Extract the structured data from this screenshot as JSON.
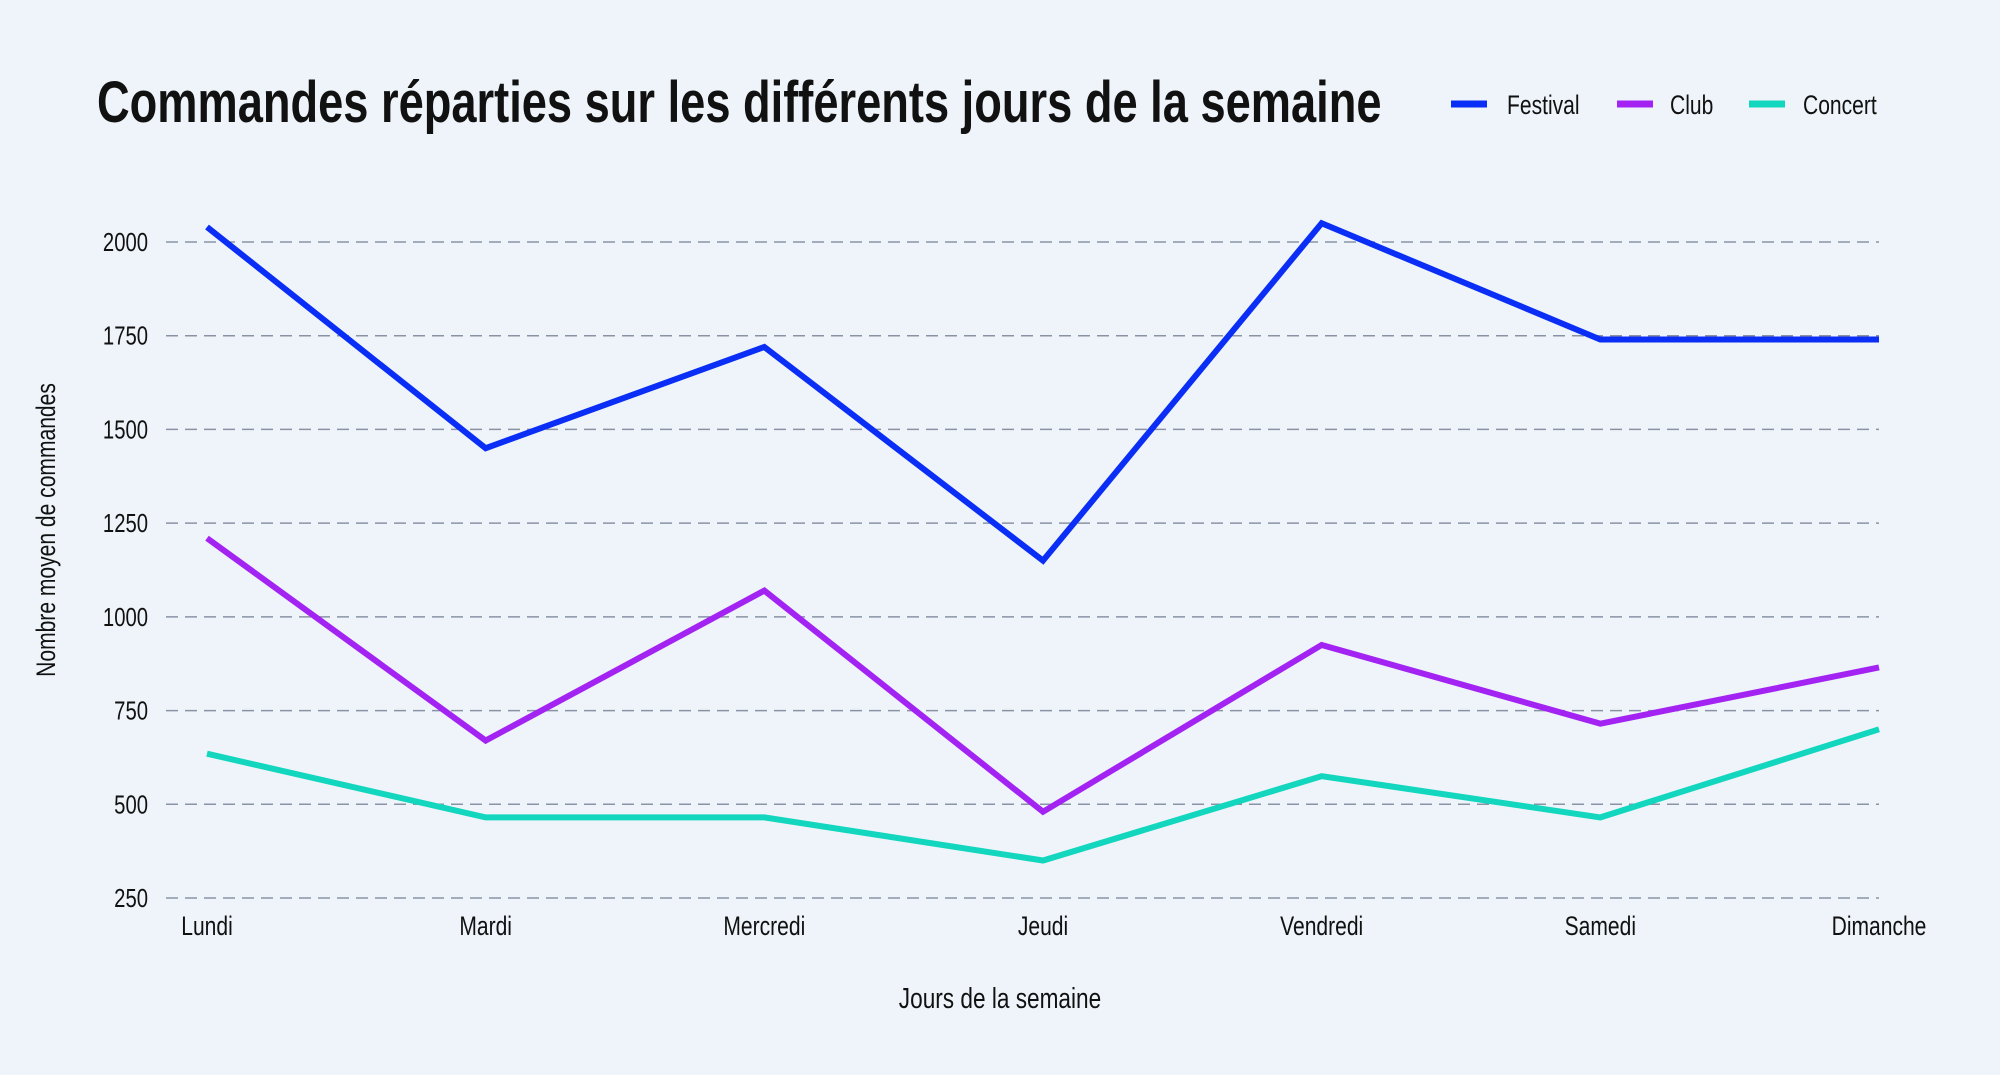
{
  "chart_data": {
    "type": "line",
    "title": "Commandes réparties sur les différents jours de la semaine",
    "xlabel": "Jours de la semaine",
    "ylabel": "Nombre moyen de commandes",
    "categories": [
      "Lundi",
      "Mardi",
      "Mercredi",
      "Jeudi",
      "Vendredi",
      "Samedi",
      "Dimanche"
    ],
    "yticks": [
      250,
      500,
      750,
      1000,
      1250,
      1500,
      1750,
      2000
    ],
    "ylim": [
      250,
      2000
    ],
    "grid": "horizontal dashed",
    "legend_position": "top-right",
    "series": [
      {
        "name": "Festival",
        "color": "#0a2ef5",
        "values": [
          2040,
          1450,
          1720,
          1150,
          2050,
          1740,
          1740
        ]
      },
      {
        "name": "Club",
        "color": "#a324f2",
        "values": [
          1210,
          670,
          1070,
          480,
          925,
          715,
          865
        ]
      },
      {
        "name": "Concert",
        "color": "#12d6bd",
        "values": [
          635,
          465,
          465,
          350,
          575,
          465,
          700
        ]
      }
    ],
    "background": "#eef4f9"
  }
}
